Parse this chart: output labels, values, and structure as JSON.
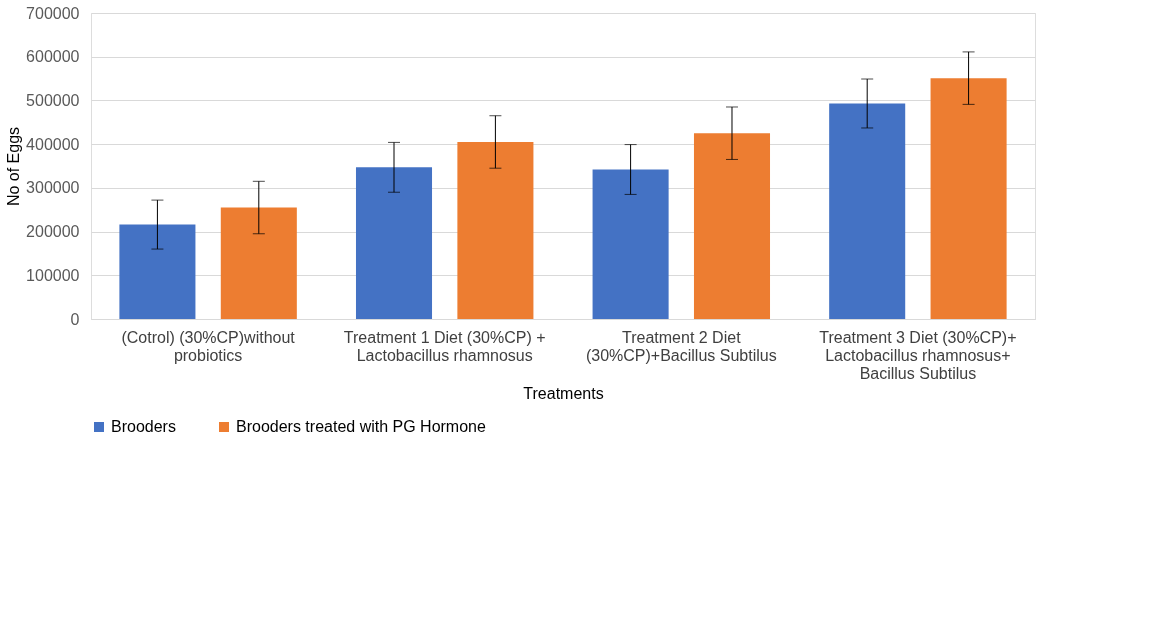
{
  "chart_data": {
    "type": "bar",
    "xlabel": "Treatments",
    "ylabel": "No of Eggs",
    "categories": [
      "(Cotrol)  (30%CP)without probiotics",
      "Treatment 1 Diet  (30%CP) + Lactobacillus rhamnosus",
      "Treatment 2 Diet (30%CP)+Bacillus Subtilus",
      "Treatment 3 Diet (30%CP)+ Lactobacillus rhamnosus+ Bacillus Subtilus"
    ],
    "series": [
      {
        "name": "Brooders",
        "color": "#4472c4",
        "values": [
          216000,
          347000,
          342000,
          493000
        ],
        "errors": [
          56000,
          57000,
          57000,
          56000
        ]
      },
      {
        "name": "Brooders treated with    PG Hormone",
        "color": "#ed7d31",
        "values": [
          255000,
          405000,
          425000,
          551000
        ],
        "errors": [
          60000,
          60000,
          60000,
          60000
        ]
      }
    ],
    "ylim": [
      0,
      700000
    ],
    "yticks": [
      0,
      100000,
      200000,
      300000,
      400000,
      500000,
      600000,
      700000
    ],
    "grid": "y",
    "legend": "bottom"
  }
}
